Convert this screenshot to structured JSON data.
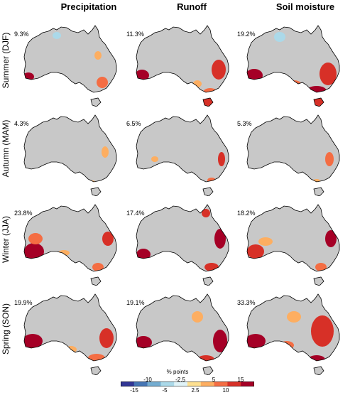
{
  "columns": [
    "Precipitation",
    "Runoff",
    "Soil moisture"
  ],
  "rows": [
    "Summer (DJF)",
    "Autumn (MAM)",
    "Winter (JJA)",
    "Spring (SON)"
  ],
  "percentages": [
    [
      "9.3%",
      "11.3%",
      "19.2%"
    ],
    [
      "4.3%",
      "6.5%",
      "5.3%"
    ],
    [
      "23.8%",
      "17.4%",
      "18.2%"
    ],
    [
      "19.9%",
      "19.1%",
      "33.3%"
    ]
  ],
  "colorbar": {
    "title": "% points",
    "top_labels": [
      "-10",
      "-2.5",
      "5",
      "15"
    ],
    "bottom_labels": [
      "-15",
      "-5",
      "2.5",
      "10"
    ],
    "colors": [
      "#313695",
      "#4575b4",
      "#74add1",
      "#abd9e9",
      "#e0f3f8",
      "#fee090",
      "#fdae61",
      "#f46d43",
      "#d73027",
      "#a50026"
    ]
  },
  "map_colors": {
    "land": "#c8c8c8",
    "coast": "#000000",
    "pos_low": "#fdae61",
    "pos_mid": "#f46d43",
    "pos_high": "#d73027",
    "pos_max": "#a50026",
    "neg": "#abd9e9"
  }
}
